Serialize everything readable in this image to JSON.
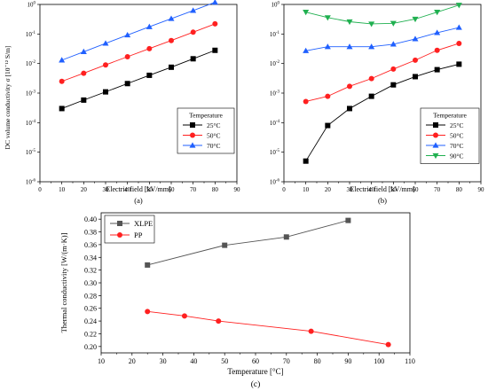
{
  "chart_data": [
    {
      "type": "line",
      "panel_label": "(a)",
      "xlabel": "Electric field [kV/mm]",
      "ylabel": "DC volume conductivity σ [10⁻¹² S/m]",
      "xlim": [
        0,
        90
      ],
      "xticks": [
        0,
        10,
        20,
        30,
        40,
        50,
        60,
        70,
        80,
        90
      ],
      "ylim": [
        1e-06,
        1
      ],
      "yscale": "log",
      "yticks": [
        {
          "value": 1e-06,
          "base": "10",
          "exp": "-6"
        },
        {
          "value": 1e-05,
          "base": "10",
          "exp": "-5"
        },
        {
          "value": 0.0001,
          "base": "10",
          "exp": "-4"
        },
        {
          "value": 0.001,
          "base": "10",
          "exp": "-3"
        },
        {
          "value": 0.01,
          "base": "10",
          "exp": "-2"
        },
        {
          "value": 0.1,
          "base": "10",
          "exp": "-1"
        },
        {
          "value": 1,
          "base": "10",
          "exp": "0"
        }
      ],
      "legend_title": "Temperature",
      "legend_position": "lower-right",
      "series": [
        {
          "name": "25°C",
          "color": "#000000",
          "marker": "square",
          "x": [
            10,
            20,
            30,
            40,
            50,
            60,
            70,
            80
          ],
          "y": [
            0.0003,
            0.00058,
            0.0011,
            0.0021,
            0.004,
            0.0075,
            0.0145,
            0.028
          ]
        },
        {
          "name": "50°C",
          "color": "#ff2020",
          "marker": "circle",
          "x": [
            10,
            20,
            30,
            40,
            50,
            60,
            70,
            80
          ],
          "y": [
            0.0025,
            0.0047,
            0.009,
            0.017,
            0.032,
            0.06,
            0.115,
            0.22
          ]
        },
        {
          "name": "70°C",
          "color": "#2060ff",
          "marker": "triangle-up",
          "x": [
            10,
            20,
            30,
            40,
            50,
            60,
            70,
            80
          ],
          "y": [
            0.013,
            0.025,
            0.048,
            0.092,
            0.175,
            0.33,
            0.62,
            1.18
          ]
        }
      ]
    },
    {
      "type": "line",
      "panel_label": "(b)",
      "xlabel": "Electric field [kV/mm]",
      "ylabel": "",
      "xlim": [
        0,
        90
      ],
      "xticks": [
        0,
        10,
        20,
        30,
        40,
        50,
        60,
        70,
        80,
        90
      ],
      "ylim": [
        1e-06,
        1
      ],
      "yscale": "log",
      "yticks": [
        {
          "value": 1e-06,
          "base": "10",
          "exp": "-6"
        },
        {
          "value": 1e-05,
          "base": "10",
          "exp": "-5"
        },
        {
          "value": 0.0001,
          "base": "10",
          "exp": "-4"
        },
        {
          "value": 0.001,
          "base": "10",
          "exp": "-3"
        },
        {
          "value": 0.01,
          "base": "10",
          "exp": "-2"
        },
        {
          "value": 0.1,
          "base": "10",
          "exp": "-1"
        },
        {
          "value": 1,
          "base": "10",
          "exp": "0"
        }
      ],
      "legend_title": "Temperature",
      "legend_position": "lower-right",
      "series": [
        {
          "name": "25°C",
          "color": "#000000",
          "marker": "square",
          "x": [
            10,
            20,
            30,
            40,
            50,
            60,
            70,
            80
          ],
          "y": [
            5e-06,
            8e-05,
            0.0003,
            0.00078,
            0.0019,
            0.0036,
            0.0062,
            0.0095
          ]
        },
        {
          "name": "50°C",
          "color": "#ff2020",
          "marker": "circle",
          "x": [
            10,
            20,
            30,
            40,
            50,
            60,
            70,
            80
          ],
          "y": [
            0.00052,
            0.00078,
            0.0017,
            0.0031,
            0.0065,
            0.013,
            0.028,
            0.048
          ]
        },
        {
          "name": "70°C",
          "color": "#2060ff",
          "marker": "triangle-up",
          "x": [
            10,
            20,
            30,
            40,
            50,
            60,
            70,
            80
          ],
          "y": [
            0.027,
            0.037,
            0.037,
            0.037,
            0.045,
            0.068,
            0.11,
            0.165
          ]
        },
        {
          "name": "90°C",
          "color": "#20b050",
          "marker": "triangle-down",
          "x": [
            10,
            20,
            30,
            40,
            50,
            60,
            70,
            80
          ],
          "y": [
            0.55,
            0.36,
            0.26,
            0.22,
            0.23,
            0.32,
            0.55,
            0.95
          ]
        }
      ]
    },
    {
      "type": "line",
      "panel_label": "(c)",
      "xlabel": "Temperature [°C]",
      "ylabel": "Thermal conductivity [W/(m·K)]",
      "xlim": [
        10,
        110
      ],
      "xticks": [
        10,
        20,
        30,
        40,
        50,
        60,
        70,
        80,
        90,
        100,
        110
      ],
      "ylim": [
        0.19,
        0.41
      ],
      "yscale": "linear",
      "yticks": [
        0.2,
        0.22,
        0.24,
        0.26,
        0.28,
        0.3,
        0.32,
        0.34,
        0.36,
        0.38,
        0.4
      ],
      "ytick_labels": [
        "0.20",
        "0.22",
        "0.24",
        "0.26",
        "0.28",
        "0.30",
        "0.32",
        "0.34",
        "0.36",
        "0.38",
        "0.40"
      ],
      "legend_title": "",
      "legend_position": "top-left",
      "series": [
        {
          "name": "XLPE",
          "color": "#555555",
          "marker": "square",
          "x": [
            25,
            50,
            70,
            90
          ],
          "y": [
            0.328,
            0.359,
            0.372,
            0.398
          ]
        },
        {
          "name": "PP",
          "color": "#ff2020",
          "marker": "circle",
          "x": [
            25,
            37,
            48,
            78,
            103
          ],
          "y": [
            0.255,
            0.248,
            0.24,
            0.224,
            0.203
          ]
        }
      ]
    }
  ]
}
